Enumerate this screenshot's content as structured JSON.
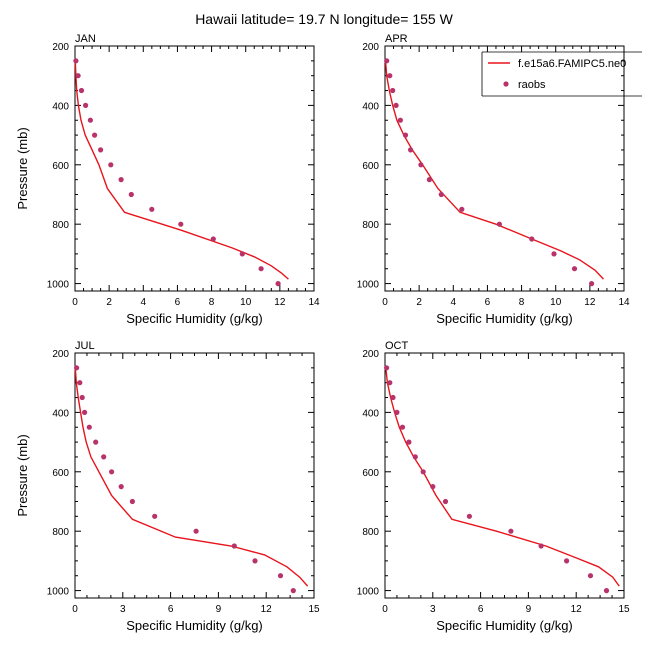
{
  "figure_title": "Hawaii  latitude= 19.7 N longitude= 155 W",
  "colors": {
    "model_line": "#e8141c",
    "obs_marker": "#b8336a",
    "axes": "#000000"
  },
  "legend": {
    "model_label": "f.e15a6.FAMIPC5.ne0",
    "obs_label": "raobs",
    "placement": "top-right (APR panel)"
  },
  "chart_data": [
    {
      "type": "line",
      "title": "JAN",
      "xlabel": "Specific Humidity (g/kg)",
      "ylabel": "Pressure (mb)",
      "xlim": [
        0,
        14
      ],
      "ylim": [
        1025,
        200
      ],
      "y_reversed": true,
      "xticks": [
        "0",
        "2",
        "4",
        "6",
        "8",
        "10",
        "12",
        "14"
      ],
      "yticks": [
        "200",
        "400",
        "600",
        "800",
        "1000"
      ],
      "series": [
        {
          "name": "f.e15a6.FAMIPC5.ne0",
          "kind": "line",
          "x": [
            0.02,
            0.05,
            0.1,
            0.2,
            0.35,
            0.6,
            1.0,
            1.4,
            1.9,
            2.9,
            6.2,
            9.2,
            10.5,
            11.5,
            12.1,
            12.5
          ],
          "y": [
            250,
            300,
            350,
            400,
            450,
            500,
            550,
            600,
            680,
            760,
            820,
            880,
            910,
            940,
            965,
            985
          ]
        },
        {
          "name": "raobs",
          "kind": "scatter",
          "x": [
            0.05,
            0.18,
            0.38,
            0.62,
            0.9,
            1.15,
            1.5,
            2.1,
            2.7,
            3.3,
            4.5,
            6.2,
            8.1,
            9.8,
            10.9,
            11.9
          ],
          "y": [
            250,
            300,
            350,
            400,
            450,
            500,
            550,
            600,
            650,
            700,
            750,
            800,
            850,
            900,
            950,
            1000
          ]
        }
      ]
    },
    {
      "type": "line",
      "title": "APR",
      "xlabel": "Specific Humidity (g/kg)",
      "ylabel": "",
      "xlim": [
        0,
        14
      ],
      "ylim": [
        1025,
        200
      ],
      "y_reversed": true,
      "xticks": [
        "0",
        "2",
        "4",
        "6",
        "8",
        "10",
        "12",
        "14"
      ],
      "yticks": [
        "200",
        "400",
        "600",
        "800",
        "1000"
      ],
      "series": [
        {
          "name": "f.e15a6.FAMIPC5.ne0",
          "kind": "line",
          "x": [
            0.03,
            0.1,
            0.25,
            0.45,
            0.7,
            1.1,
            1.6,
            2.2,
            3.1,
            4.4,
            6.5,
            8.6,
            10.3,
            11.4,
            12.3,
            12.8
          ],
          "y": [
            250,
            300,
            350,
            400,
            450,
            500,
            550,
            600,
            680,
            760,
            800,
            850,
            890,
            920,
            955,
            985
          ]
        },
        {
          "name": "raobs",
          "kind": "scatter",
          "x": [
            0.1,
            0.28,
            0.45,
            0.65,
            0.9,
            1.2,
            1.5,
            2.1,
            2.6,
            3.3,
            4.5,
            6.7,
            8.6,
            9.9,
            11.1,
            12.1
          ],
          "y": [
            250,
            300,
            350,
            400,
            450,
            500,
            550,
            600,
            650,
            700,
            750,
            800,
            850,
            900,
            950,
            1000
          ]
        }
      ]
    },
    {
      "type": "line",
      "title": "JUL",
      "xlabel": "Specific Humidity (g/kg)",
      "ylabel": "Pressure (mb)",
      "xlim": [
        0,
        15
      ],
      "ylim": [
        1025,
        200
      ],
      "y_reversed": true,
      "xticks": [
        "0",
        "3",
        "6",
        "9",
        "12",
        "15"
      ],
      "yticks": [
        "200",
        "400",
        "600",
        "800",
        "1000"
      ],
      "series": [
        {
          "name": "f.e15a6.FAMIPC5.ne0",
          "kind": "line",
          "x": [
            0.02,
            0.08,
            0.2,
            0.35,
            0.5,
            0.7,
            1.0,
            1.5,
            2.3,
            3.6,
            6.3,
            9.8,
            11.9,
            13.3,
            14.1,
            14.6
          ],
          "y": [
            250,
            300,
            350,
            400,
            450,
            500,
            550,
            600,
            680,
            760,
            820,
            850,
            880,
            920,
            955,
            985
          ]
        },
        {
          "name": "raobs",
          "kind": "scatter",
          "x": [
            0.1,
            0.3,
            0.45,
            0.6,
            0.9,
            1.3,
            1.8,
            2.3,
            2.9,
            3.6,
            5.0,
            7.6,
            10.0,
            11.3,
            12.9,
            13.7
          ],
          "y": [
            250,
            300,
            350,
            400,
            450,
            500,
            550,
            600,
            650,
            700,
            750,
            800,
            850,
            900,
            950,
            1000
          ]
        }
      ]
    },
    {
      "type": "line",
      "title": "OCT",
      "xlabel": "Specific Humidity (g/kg)",
      "ylabel": "",
      "xlim": [
        0,
        15
      ],
      "ylim": [
        1025,
        200
      ],
      "y_reversed": true,
      "xticks": [
        "0",
        "3",
        "6",
        "9",
        "12",
        "15"
      ],
      "yticks": [
        "200",
        "400",
        "600",
        "800",
        "1000"
      ],
      "series": [
        {
          "name": "f.e15a6.FAMIPC5.ne0",
          "kind": "line",
          "x": [
            0.05,
            0.15,
            0.35,
            0.6,
            0.9,
            1.3,
            1.8,
            2.4,
            3.2,
            4.2,
            7.0,
            10.1,
            12.0,
            13.4,
            14.3,
            14.7
          ],
          "y": [
            250,
            300,
            350,
            400,
            450,
            500,
            550,
            600,
            680,
            760,
            800,
            850,
            890,
            920,
            955,
            985
          ]
        },
        {
          "name": "raobs",
          "kind": "scatter",
          "x": [
            0.1,
            0.3,
            0.5,
            0.75,
            1.1,
            1.5,
            1.9,
            2.4,
            3.0,
            3.8,
            5.3,
            7.9,
            9.8,
            11.4,
            12.9,
            13.9
          ],
          "y": [
            250,
            300,
            350,
            400,
            450,
            500,
            550,
            600,
            650,
            700,
            750,
            800,
            850,
            900,
            950,
            1000
          ]
        }
      ]
    }
  ]
}
